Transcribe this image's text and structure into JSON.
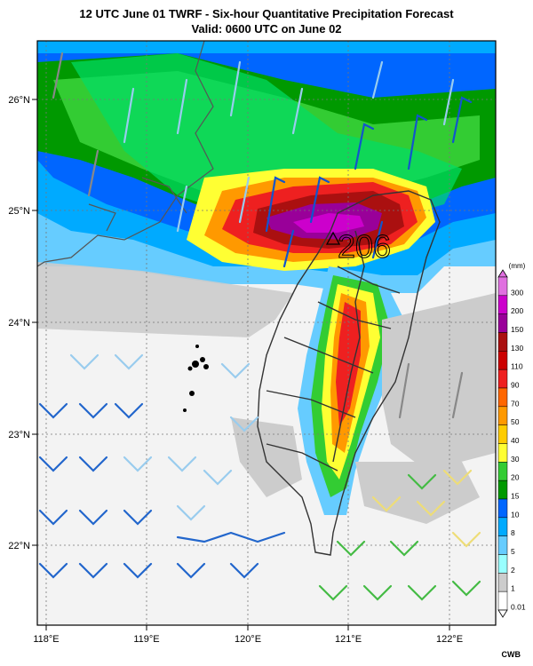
{
  "header": {
    "title": "12 UTC June 01 TWRF - Six-hour Quantitative Precipitation Forecast",
    "subtitle": "Valid: 0600 UTC on June 02"
  },
  "axes": {
    "lon_labels": [
      "118°E",
      "119°E",
      "120°E",
      "121°E",
      "122°E"
    ],
    "lat_labels": [
      "26°N",
      "25°N",
      "24°N",
      "23°N",
      "22°N"
    ],
    "lon_range": [
      118.0,
      122.45
    ],
    "lat_range": [
      21.35,
      26.45
    ]
  },
  "max_marker": {
    "label": "206",
    "lon": 120.8,
    "lat": 24.75
  },
  "legend": {
    "unit": "(mm)",
    "levels": [
      "300",
      "200",
      "150",
      "130",
      "110",
      "90",
      "70",
      "50",
      "40",
      "30",
      "20",
      "15",
      "10",
      "8",
      "5",
      "2",
      "1",
      "0.01"
    ],
    "colors": [
      "#e070e0",
      "#cc00cc",
      "#990099",
      "#aa1010",
      "#cc0000",
      "#ee2020",
      "#ff6600",
      "#ff9900",
      "#ffcc00",
      "#ffff33",
      "#33cc33",
      "#009900",
      "#0066ff",
      "#00aaff",
      "#66ccff",
      "#99ffff",
      "#cccccc",
      "#ffffff"
    ]
  },
  "credit": "CWB"
}
